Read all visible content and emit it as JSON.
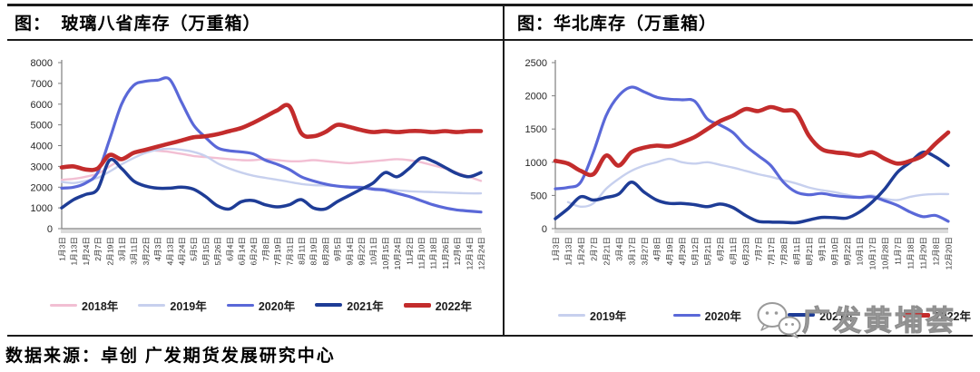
{
  "panels": [
    {
      "title": "图：  玻璃八省库存（万重箱）"
    },
    {
      "title": "图：华北库存（万重箱）"
    }
  ],
  "source": "数据来源：卓创 广发期货发展研究中心",
  "watermark": {
    "text": "广发黄埔荟",
    "icon": "wechat-bubbles-icon",
    "color": "#9a9a9a"
  },
  "chart_data": [
    {
      "type": "line",
      "title": "玻璃八省库存（万重箱）",
      "xlabel": "",
      "ylabel": "",
      "ylim": [
        0,
        8000
      ],
      "ytick_step": 1000,
      "grid": false,
      "legend_position": "bottom",
      "categories": [
        "1月3日",
        "1月13日",
        "1月24日",
        "2月7日",
        "2月19日",
        "3月1日",
        "3月11日",
        "3月22日",
        "4月3日",
        "4月13日",
        "4月24日",
        "5月5日",
        "5月15日",
        "5月26日",
        "6月4日",
        "6月14日",
        "6月24日",
        "7月8日",
        "7月19日",
        "7月31日",
        "8月11日",
        "8月19日",
        "8月28日",
        "9月5日",
        "9月14日",
        "9月22日",
        "10月1日",
        "10月15日",
        "10月24日",
        "11月2日",
        "11月10日",
        "11月18日",
        "11月26日",
        "12月6日",
        "12月14日",
        "12月24日"
      ],
      "series": [
        {
          "name": "2018年",
          "color": "#F2BFD3",
          "width": 2.4,
          "values": [
            2350,
            2400,
            2500,
            2650,
            3000,
            3350,
            3650,
            3800,
            3750,
            3700,
            3600,
            3500,
            3450,
            3400,
            3350,
            3300,
            3300,
            3350,
            3300,
            3250,
            3250,
            3300,
            3250,
            3200,
            3150,
            3200,
            3250,
            3300,
            3350,
            3300,
            3200,
            3050,
            2900,
            2700,
            2500,
            2300
          ]
        },
        {
          "name": "2019年",
          "color": "#C7D0EE",
          "width": 2.4,
          "values": [
            2250,
            2200,
            2300,
            2450,
            2750,
            3100,
            3400,
            3650,
            3800,
            3850,
            3800,
            3700,
            3500,
            3150,
            2900,
            2700,
            2550,
            2450,
            2350,
            2250,
            2150,
            2100,
            2080,
            2060,
            2040,
            2020,
            1950,
            1900,
            1850,
            1800,
            1780,
            1760,
            1740,
            1720,
            1700,
            1700
          ]
        },
        {
          "name": "2020年",
          "color": "#5A68D8",
          "width": 3.2,
          "values": [
            1950,
            2000,
            2200,
            2700,
            4300,
            6000,
            6900,
            7100,
            7150,
            7200,
            6100,
            5000,
            4400,
            3900,
            3750,
            3700,
            3600,
            3300,
            3100,
            2850,
            2500,
            2300,
            2150,
            2050,
            2000,
            1980,
            1900,
            1850,
            1700,
            1550,
            1350,
            1150,
            1000,
            900,
            850,
            800
          ]
        },
        {
          "name": "2021年",
          "color": "#1E3C96",
          "width": 3.5,
          "values": [
            1000,
            1400,
            1650,
            1900,
            3300,
            2900,
            2300,
            2050,
            1950,
            1950,
            2000,
            1900,
            1550,
            1100,
            950,
            1300,
            1350,
            1150,
            1050,
            1150,
            1400,
            1000,
            950,
            1300,
            1600,
            1900,
            2200,
            2700,
            2500,
            2900,
            3400,
            3250,
            2950,
            2650,
            2500,
            2700
          ]
        },
        {
          "name": "2022年",
          "color": "#C32C2C",
          "width": 4.6,
          "values": [
            2950,
            3000,
            2850,
            2900,
            3550,
            3350,
            3650,
            3800,
            3950,
            4100,
            4250,
            4400,
            4450,
            4550,
            4700,
            4850,
            5100,
            5400,
            5700,
            5900,
            4600,
            4450,
            4650,
            5000,
            4900,
            4750,
            4650,
            4700,
            4650,
            4700,
            4700,
            4650,
            4700,
            4650,
            4700,
            4700
          ]
        }
      ]
    },
    {
      "type": "line",
      "title": "华北库存（万重箱）",
      "xlabel": "",
      "ylabel": "",
      "ylim": [
        0,
        2500
      ],
      "ytick_step": 500,
      "grid": false,
      "legend_position": "bottom",
      "categories": [
        "1月3日",
        "1月13日",
        "1月24日",
        "2月7日",
        "2月21日",
        "3月4日",
        "3月17日",
        "3月27日",
        "4月8日",
        "4月19日",
        "4月29日",
        "5月12日",
        "5月21日",
        "6月2日",
        "6月11日",
        "6月23日",
        "7月7日",
        "7月17日",
        "7月28日",
        "8月11日",
        "8月21日",
        "9月1日",
        "9月10日",
        "9月22日",
        "10月1日",
        "10月17日",
        "10月28日",
        "11月7日",
        "11月18日",
        "11月29日",
        "12月8日",
        "12月20日"
      ],
      "series": [
        {
          "name": "2019年",
          "color": "#C7D0EE",
          "width": 2.4,
          "values": [
            null,
            400,
            330,
            380,
            600,
            750,
            870,
            950,
            1000,
            1050,
            1000,
            980,
            1000,
            960,
            920,
            870,
            820,
            780,
            730,
            680,
            620,
            580,
            550,
            510,
            480,
            500,
            450,
            430,
            480,
            510,
            520,
            520
          ]
        },
        {
          "name": "2020年",
          "color": "#5A68D8",
          "width": 3.2,
          "values": [
            600,
            620,
            700,
            1150,
            1700,
            2000,
            2130,
            2060,
            1980,
            1950,
            1940,
            1920,
            1650,
            1560,
            1450,
            1250,
            1100,
            950,
            700,
            550,
            510,
            530,
            500,
            480,
            470,
            480,
            420,
            350,
            250,
            180,
            200,
            110
          ]
        },
        {
          "name": "2021年",
          "color": "#1E3C96",
          "width": 3.5,
          "values": [
            150,
            300,
            480,
            430,
            470,
            520,
            700,
            550,
            430,
            380,
            380,
            360,
            330,
            370,
            320,
            200,
            110,
            100,
            95,
            90,
            130,
            170,
            165,
            160,
            250,
            400,
            600,
            850,
            1000,
            1150,
            1080,
            950
          ]
        },
        {
          "name": "2022年",
          "color": "#C32C2C",
          "width": 4.6,
          "values": [
            1020,
            980,
            870,
            820,
            1100,
            950,
            1150,
            1220,
            1250,
            1240,
            1300,
            1380,
            1500,
            1620,
            1700,
            1800,
            1770,
            1830,
            1780,
            1750,
            1400,
            1200,
            1150,
            1130,
            1100,
            1150,
            1050,
            980,
            1020,
            1100,
            1280,
            1450
          ]
        }
      ]
    }
  ]
}
